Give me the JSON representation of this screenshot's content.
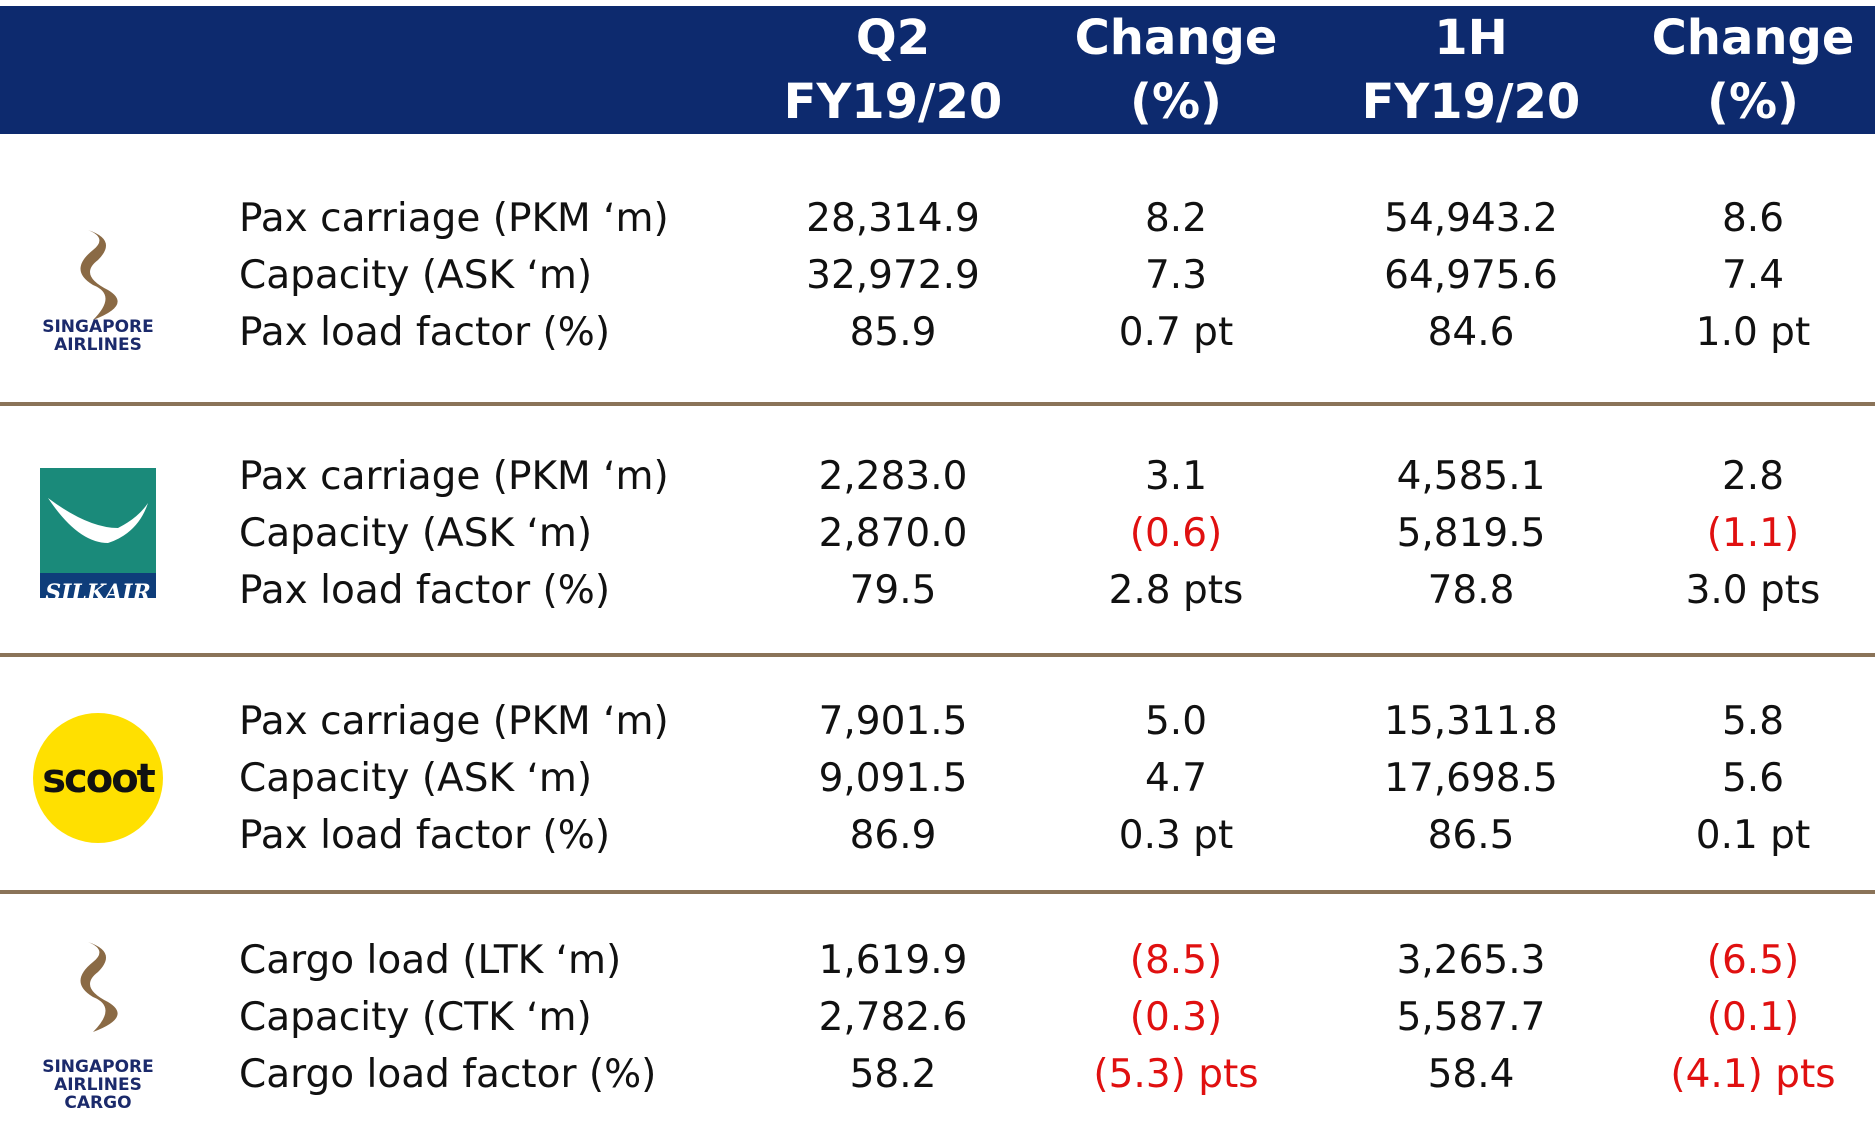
{
  "header": {
    "columns": [
      [
        "Q2",
        "FY19/20"
      ],
      [
        "Change",
        "(%)"
      ],
      [
        "1H",
        "FY19/20"
      ],
      [
        "Change",
        "(%)"
      ]
    ]
  },
  "groups": [
    {
      "logo": [
        "SINGAPORE",
        "AIRLINES"
      ],
      "rows": [
        [
          "Pax carriage (PKM ‘m)",
          "28,314.9",
          "8.2",
          "54,943.2",
          "8.6"
        ],
        [
          "Capacity (ASK ‘m)",
          "32,972.9",
          "7.3",
          "64,975.6",
          "7.4"
        ],
        [
          "Pax load factor (%)",
          "85.9",
          "0.7 pt",
          "84.6",
          "1.0 pt"
        ]
      ]
    },
    {
      "logo": [
        "SILKAIR"
      ],
      "rows": [
        [
          "Pax carriage (PKM ‘m)",
          "2,283.0",
          "3.1",
          "4,585.1",
          "2.8"
        ],
        [
          "Capacity (ASK ‘m)",
          "2,870.0",
          "(0.6)",
          "5,819.5",
          "(1.1)"
        ],
        [
          "Pax load factor (%)",
          "79.5",
          "2.8 pts",
          "78.8",
          "3.0 pts"
        ]
      ]
    },
    {
      "logo": [
        "scoot"
      ],
      "rows": [
        [
          "Pax carriage (PKM ‘m)",
          "7,901.5",
          "5.0",
          "15,311.8",
          "5.8"
        ],
        [
          "Capacity (ASK ‘m)",
          "9,091.5",
          "4.7",
          "17,698.5",
          "5.6"
        ],
        [
          "Pax load factor (%)",
          "86.9",
          "0.3 pt",
          "86.5",
          "0.1 pt"
        ]
      ]
    },
    {
      "logo": [
        "SINGAPORE",
        "AIRLINES",
        "CARGO"
      ],
      "rows": [
        [
          "Cargo load (LTK ‘m)",
          "1,619.9",
          "(8.5)",
          "3,265.3",
          "(6.5)"
        ],
        [
          "Capacity (CTK ‘m)",
          "2,782.6",
          "(0.3)",
          "5,587.7",
          "(0.1)"
        ],
        [
          "Cargo load factor (%)",
          "58.2",
          "(5.3) pts",
          "58.4",
          "(4.1) pts"
        ]
      ]
    }
  ]
}
